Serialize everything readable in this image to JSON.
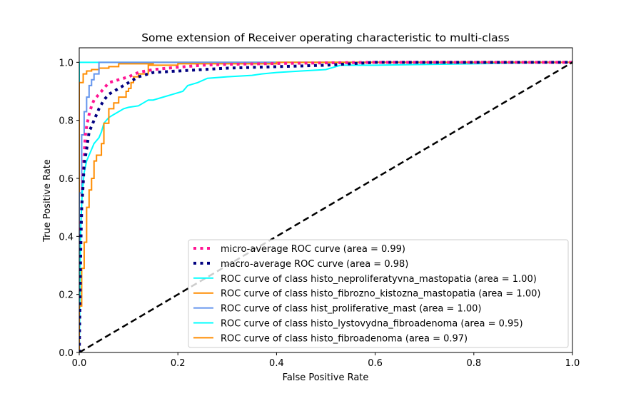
{
  "chart_data": {
    "type": "line",
    "title": "Some extension of Receiver operating characteristic to multi-class",
    "xlabel": "False Positive Rate",
    "ylabel": "True Positive Rate",
    "xlim": [
      0.0,
      1.0
    ],
    "ylim": [
      0.0,
      1.05
    ],
    "xticks": [
      "0.0",
      "0.2",
      "0.4",
      "0.6",
      "0.8",
      "1.0"
    ],
    "yticks": [
      "0.0",
      "0.2",
      "0.4",
      "0.6",
      "0.8",
      "1.0"
    ],
    "legend_position": "lower-right",
    "grid": false,
    "series": [
      {
        "name": "micro-average ROC curve (area = 0.99)",
        "color": "#ff1493",
        "style": "dotted",
        "x": [
          0,
          0.003,
          0.006,
          0.008,
          0.01,
          0.012,
          0.015,
          0.02,
          0.025,
          0.03,
          0.04,
          0.05,
          0.06,
          0.08,
          0.1,
          0.12,
          0.15,
          0.2,
          0.25,
          0.3,
          0.4,
          0.5,
          0.6,
          0.7,
          0.8,
          0.9,
          1.0
        ],
        "y": [
          0,
          0.4,
          0.55,
          0.62,
          0.68,
          0.74,
          0.78,
          0.82,
          0.85,
          0.87,
          0.89,
          0.91,
          0.93,
          0.94,
          0.95,
          0.965,
          0.975,
          0.983,
          0.99,
          0.993,
          0.996,
          0.998,
          1.0,
          1.0,
          1.0,
          1.0,
          1.0
        ]
      },
      {
        "name": "macro-average ROC curve (area = 0.98)",
        "color": "#000080",
        "style": "dotted",
        "x": [
          0,
          0.003,
          0.005,
          0.008,
          0.01,
          0.015,
          0.02,
          0.03,
          0.04,
          0.05,
          0.06,
          0.08,
          0.1,
          0.12,
          0.15,
          0.2,
          0.25,
          0.3,
          0.4,
          0.5,
          0.6,
          0.7,
          0.8,
          0.9,
          1.0
        ],
        "y": [
          0,
          0.35,
          0.5,
          0.58,
          0.65,
          0.7,
          0.76,
          0.8,
          0.84,
          0.87,
          0.89,
          0.91,
          0.93,
          0.95,
          0.965,
          0.97,
          0.975,
          0.98,
          0.985,
          0.99,
          1.0,
          1.0,
          1.0,
          1.0,
          1.0
        ]
      },
      {
        "name": "ROC curve of class histo_neproliferatyvna_mastopatia (area = 1.00)",
        "color": "#00ffff",
        "style": "solid",
        "x": [
          0,
          0,
          0,
          0.15,
          1.0
        ],
        "y": [
          0,
          0.95,
          1.0,
          1.0,
          1.0
        ]
      },
      {
        "name": "ROC curve of class histo_fibrozno_kistozna_mastopatia (area = 1.00)",
        "color": "#ff8c00",
        "style": "solid",
        "x": [
          0,
          0,
          0.008,
          0.008,
          0.015,
          0.015,
          0.025,
          0.025,
          0.04,
          0.04,
          0.06,
          0.06,
          0.08,
          0.08,
          0.15,
          0.15,
          1.0
        ],
        "y": [
          0,
          0.93,
          0.93,
          0.96,
          0.96,
          0.97,
          0.97,
          0.975,
          0.975,
          0.98,
          0.98,
          0.985,
          0.985,
          0.995,
          0.995,
          1.0,
          1.0
        ]
      },
      {
        "name": "ROC curve of class hist_proliferative_mast (area = 1.00)",
        "color": "#6495ed",
        "style": "solid",
        "x": [
          0,
          0,
          0.005,
          0.005,
          0.01,
          0.01,
          0.015,
          0.015,
          0.02,
          0.02,
          0.025,
          0.025,
          0.03,
          0.03,
          0.04,
          0.04,
          1.0
        ],
        "y": [
          0,
          0.55,
          0.55,
          0.75,
          0.75,
          0.83,
          0.83,
          0.88,
          0.88,
          0.92,
          0.92,
          0.94,
          0.94,
          0.96,
          0.96,
          1.0,
          1.0
        ]
      },
      {
        "name": "ROC curve of class histo_lystovydna_fibroadenoma (area = 0.95)",
        "color": "#00ffff",
        "style": "solid",
        "x": [
          0,
          0.003,
          0.006,
          0.01,
          0.015,
          0.02,
          0.025,
          0.03,
          0.035,
          0.04,
          0.045,
          0.05,
          0.06,
          0.07,
          0.08,
          0.09,
          0.1,
          0.12,
          0.14,
          0.15,
          0.17,
          0.19,
          0.21,
          0.22,
          0.24,
          0.26,
          0.3,
          0.35,
          0.37,
          0.4,
          0.45,
          0.5,
          0.53,
          0.6,
          0.8,
          1.0
        ],
        "y": [
          0,
          0.43,
          0.55,
          0.62,
          0.66,
          0.68,
          0.7,
          0.72,
          0.73,
          0.74,
          0.76,
          0.79,
          0.81,
          0.82,
          0.83,
          0.84,
          0.845,
          0.85,
          0.87,
          0.87,
          0.88,
          0.89,
          0.9,
          0.92,
          0.93,
          0.945,
          0.95,
          0.955,
          0.96,
          0.965,
          0.97,
          0.975,
          0.99,
          0.99,
          0.995,
          1.0
        ]
      },
      {
        "name": "ROC curve of class histo_fibroadenoma (area = 0.97)",
        "color": "#ff8c00",
        "style": "solid",
        "x": [
          0,
          0,
          0.005,
          0.005,
          0.01,
          0.01,
          0.015,
          0.015,
          0.02,
          0.02,
          0.025,
          0.025,
          0.03,
          0.03,
          0.035,
          0.035,
          0.045,
          0.045,
          0.05,
          0.05,
          0.06,
          0.06,
          0.07,
          0.07,
          0.08,
          0.08,
          0.095,
          0.095,
          0.1,
          0.1,
          0.105,
          0.105,
          0.11,
          0.11,
          0.12,
          0.12,
          0.14,
          0.14,
          0.2,
          0.2,
          0.4,
          0.4,
          1.0
        ],
        "y": [
          0,
          0.16,
          0.16,
          0.29,
          0.29,
          0.38,
          0.38,
          0.5,
          0.5,
          0.56,
          0.56,
          0.6,
          0.6,
          0.66,
          0.66,
          0.68,
          0.68,
          0.72,
          0.72,
          0.79,
          0.79,
          0.84,
          0.84,
          0.86,
          0.86,
          0.88,
          0.88,
          0.9,
          0.9,
          0.91,
          0.91,
          0.93,
          0.93,
          0.95,
          0.95,
          0.96,
          0.96,
          0.99,
          0.99,
          0.995,
          0.995,
          1.0,
          1.0
        ]
      }
    ],
    "reference_line": {
      "color": "#000000",
      "style": "dashed",
      "x": [
        0,
        1
      ],
      "y": [
        0,
        1
      ]
    }
  }
}
